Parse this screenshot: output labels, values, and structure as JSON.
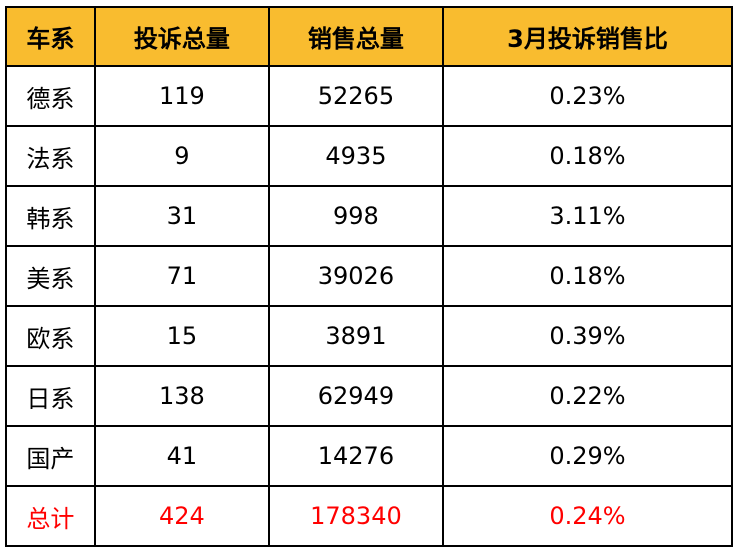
{
  "header_color": "#F9BC2F",
  "total_color": "#FF0000",
  "chart_data": {
    "type": "table",
    "columns": [
      "车系",
      "投诉总量",
      "销售总量",
      "3月投诉销售比"
    ],
    "rows": [
      [
        "德系",
        "119",
        "52265",
        "0.23%"
      ],
      [
        "法系",
        "9",
        "4935",
        "0.18%"
      ],
      [
        "韩系",
        "31",
        "998",
        "3.11%"
      ],
      [
        "美系",
        "71",
        "39026",
        "0.18%"
      ],
      [
        "欧系",
        "15",
        "3891",
        "0.39%"
      ],
      [
        "日系",
        "138",
        "62949",
        "0.22%"
      ],
      [
        "国产",
        "41",
        "14276",
        "0.29%"
      ]
    ],
    "total": [
      "总计",
      "424",
      "178340",
      "0.24%"
    ]
  }
}
